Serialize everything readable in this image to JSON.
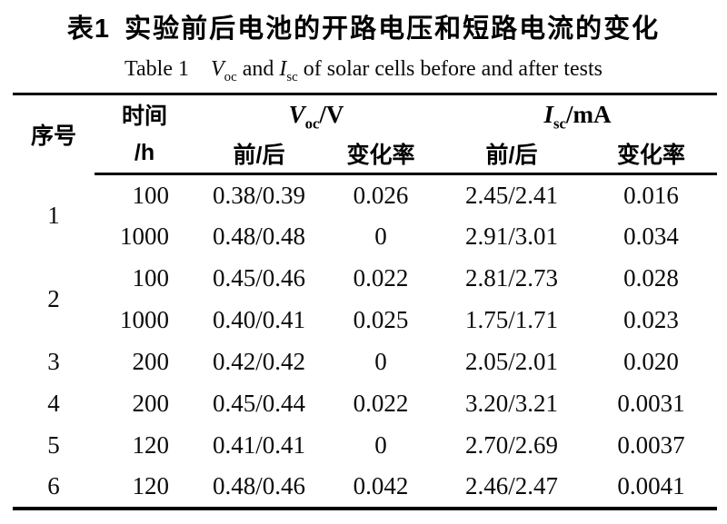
{
  "title": {
    "zh_label": "表1",
    "zh_text": "实验前后电池的开路电压和短路电流的变化"
  },
  "subtitle": {
    "label": "Table 1",
    "voc_symbol": "V",
    "voc_sub": "oc",
    "and_text": " and ",
    "isc_symbol": "I",
    "isc_sub": "sc",
    "rest": " of solar cells before and after tests"
  },
  "table": {
    "header": {
      "seq": "序号",
      "time_line1": "时间",
      "time_line2": "/h",
      "voc_symbol": "V",
      "voc_sub": "oc",
      "voc_unit": "/V",
      "isc_symbol": "I",
      "isc_sub": "sc",
      "isc_unit": "/mA",
      "before_after_v": "前/后",
      "change_rate_v": "变化率",
      "before_after_i": "前/后",
      "change_rate_i": "变化率"
    },
    "rows": [
      {
        "seq": "1",
        "time": "100",
        "voc": "0.38/0.39",
        "voc_rate": "0.026",
        "isc": "2.45/2.41",
        "isc_rate": "0.016"
      },
      {
        "time": "1000",
        "voc": "0.48/0.48",
        "voc_rate": "0",
        "isc": "2.91/3.01",
        "isc_rate": "0.034"
      },
      {
        "seq": "2",
        "time": "100",
        "voc": "0.45/0.46",
        "voc_rate": "0.022",
        "isc": "2.81/2.73",
        "isc_rate": "0.028"
      },
      {
        "time": "1000",
        "voc": "0.40/0.41",
        "voc_rate": "0.025",
        "isc": "1.75/1.71",
        "isc_rate": "0.023"
      },
      {
        "seq": "3",
        "time": "200",
        "voc": "0.42/0.42",
        "voc_rate": "0",
        "isc": "2.05/2.01",
        "isc_rate": "0.020"
      },
      {
        "seq": "4",
        "time": "200",
        "voc": "0.45/0.44",
        "voc_rate": "0.022",
        "isc": "3.20/3.21",
        "isc_rate": "0.0031"
      },
      {
        "seq": "5",
        "time": "120",
        "voc": "0.41/0.41",
        "voc_rate": "0",
        "isc": "2.70/2.69",
        "isc_rate": "0.0037"
      },
      {
        "seq": "6",
        "time": "120",
        "voc": "0.48/0.46",
        "voc_rate": "0.042",
        "isc": "2.46/2.47",
        "isc_rate": "0.0041"
      }
    ],
    "colors": {
      "text": "#0a0a0a",
      "rule": "#000000",
      "background": "#ffffff"
    }
  }
}
